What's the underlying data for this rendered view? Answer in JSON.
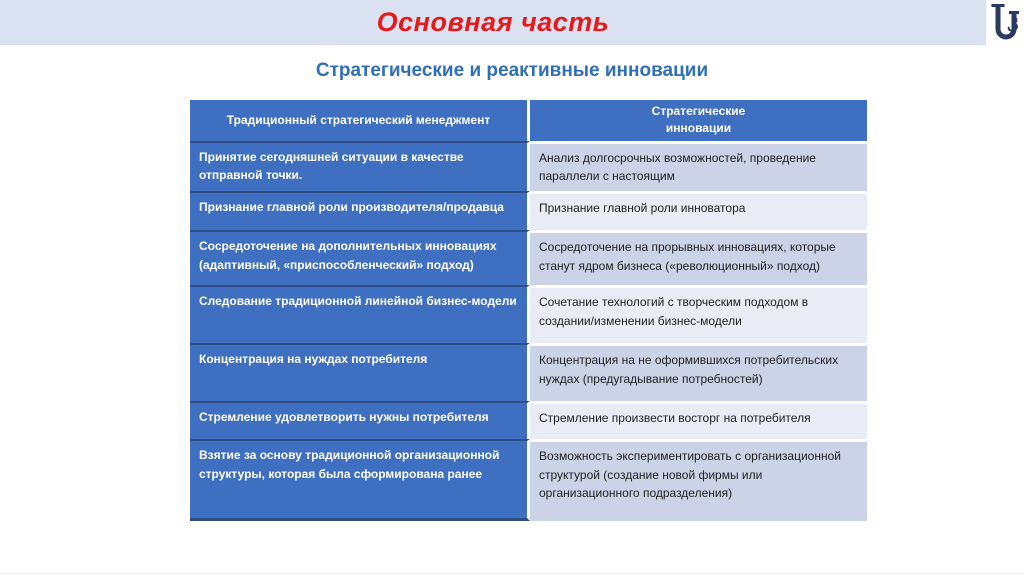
{
  "slide": {
    "title": "Основная часть",
    "subtitle": "Стратегические и реактивные инновации"
  },
  "logo": {
    "icon": "university-emblem"
  },
  "table": {
    "header_left": "Традиционный стратегический менеджмент",
    "header_right": "Стратегические\nинновации",
    "rows": [
      {
        "left": "Принятие сегодняшней ситуации в качестве отправной точки.",
        "right": "Анализ долгосрочных возможностей, проведение параллели с настоящим"
      },
      {
        "left": "Признание главной роли производителя/продавца",
        "right": "Признание главной роли инноватора"
      },
      {
        "left": "Сосредоточение на дополнительных инновациях (адаптивный, «приспособленческий» подход)",
        "right": "Сосредоточение на прорывных инновациях, которые станут ядром бизнеса («революционный» подход)"
      },
      {
        "left": "Следование традиционной линейной бизнес-модели",
        "right": "Сочетание технологий с творческим подходом в создании/изменении бизнес-модели"
      },
      {
        "left": "Концентрация на нуждах потребителя",
        "right": "Концентрация на не оформившихся потребительских нуждах (предугадывание потребностей)"
      },
      {
        "left": "Стремление удовлетворить нужны потребителя",
        "right": "Стремление произвести восторг на потребителя"
      },
      {
        "left": "Взятие за основу традиционной организационной структуры, которая была сформирована ранее",
        "right": "Возможность экспериментировать с организационной структурой (создание новой фирмы или организационного подразделения)"
      }
    ]
  },
  "colors": {
    "title_red": "#e51a1a",
    "subtitle_blue": "#2f6fb7",
    "band_bg": "#dae1f1",
    "table_header_blue": "#3f6fc1",
    "row_band_dark": "#ccd3e7",
    "row_band_light": "#e9ecf5",
    "left_divider_navy": "#2e4d82",
    "logo_navy": "#2b3a63"
  }
}
